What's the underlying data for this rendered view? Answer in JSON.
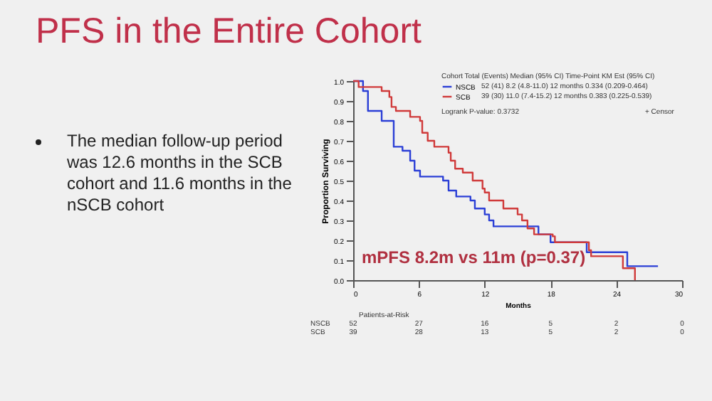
{
  "chart_data": {
    "type": "step",
    "title": "PFS in the Entire Cohort",
    "subtitle": "The median follow-up period was 12.6 months in the SCB cohort and 11.6 months in the nSCB cohort",
    "xlabel": "Months",
    "ylabel": "Proportion Surviving",
    "series": [
      {
        "name": "NSCB",
        "color": "#2b3fd6",
        "x": [
          0,
          0.9,
          1.35,
          2.6,
          3.7,
          4.5,
          5.2,
          5.6,
          6.1,
          8.2,
          8.7,
          9.4,
          10.7,
          11.1,
          12,
          12.4,
          12.8,
          16.9,
          18,
          21.3,
          25,
          27.8
        ],
        "values": [
          1,
          0.95,
          0.85,
          0.8,
          0.67,
          0.65,
          0.6,
          0.55,
          0.52,
          0.5,
          0.45,
          0.42,
          0.4,
          0.36,
          0.33,
          0.3,
          0.27,
          0.23,
          0.19,
          0.14,
          0.07,
          0.07
        ]
      },
      {
        "name": "SCB",
        "color": "#d03a3a",
        "x": [
          0,
          0.5,
          2.6,
          3.3,
          3.5,
          3.9,
          5.2,
          6.1,
          6.3,
          6.8,
          7.4,
          8.7,
          8.9,
          9.3,
          10,
          10.9,
          11.8,
          12,
          12.4,
          13.7,
          15,
          15.4,
          15.9,
          16.5,
          18.2,
          18.4,
          21.5,
          21.7,
          24.6,
          25.7
        ],
        "values": [
          1,
          0.97,
          0.95,
          0.92,
          0.87,
          0.85,
          0.82,
          0.8,
          0.74,
          0.7,
          0.67,
          0.64,
          0.6,
          0.56,
          0.54,
          0.5,
          0.46,
          0.44,
          0.4,
          0.36,
          0.33,
          0.3,
          0.26,
          0.23,
          0.22,
          0.19,
          0.15,
          0.12,
          0.06,
          0
        ]
      }
    ],
    "xlim": [
      0,
      30
    ],
    "xticks": [
      0,
      6,
      12,
      18,
      24,
      30
    ],
    "ylim": [
      0,
      1
    ],
    "yticks": [
      {
        "value": 0,
        "label": "0.0"
      },
      {
        "value": 0.1,
        "label": "0.1"
      },
      {
        "value": 0.2,
        "label": "0.2"
      },
      {
        "value": 0.3,
        "label": "0.3"
      },
      {
        "value": 0.4,
        "label": "0.4"
      },
      {
        "value": 0.5,
        "label": "0.5"
      },
      {
        "value": 0.6,
        "label": "0.6"
      },
      {
        "value": 0.7,
        "label": "0.7"
      },
      {
        "value": 0.8,
        "label": "0.8"
      },
      {
        "value": 0.9,
        "label": "0.9"
      },
      {
        "value": 1,
        "label": "1.0"
      }
    ],
    "legend": "top",
    "grid": false,
    "annotations": [
      "Cohort Total (Events) Median (95% CI) Time-Point KM Est (95% CI)",
      "52 (41)  8.2 (4.8-11.0)  12 months  0.334 (0.209-0.464)",
      "39 (30)  11.0 (7.4-15.2)  12 months  0.383 (0.225-0.539)",
      "Logrank P-value: 0.3732",
      "+ Censor",
      "mPFS 8.2m vs 11m (p=0.37)",
      "Patients-at-Risk",
      "NSCB 52 27 16 5 2 0",
      "SCB 39 28 13 5 2 0"
    ]
  }
}
